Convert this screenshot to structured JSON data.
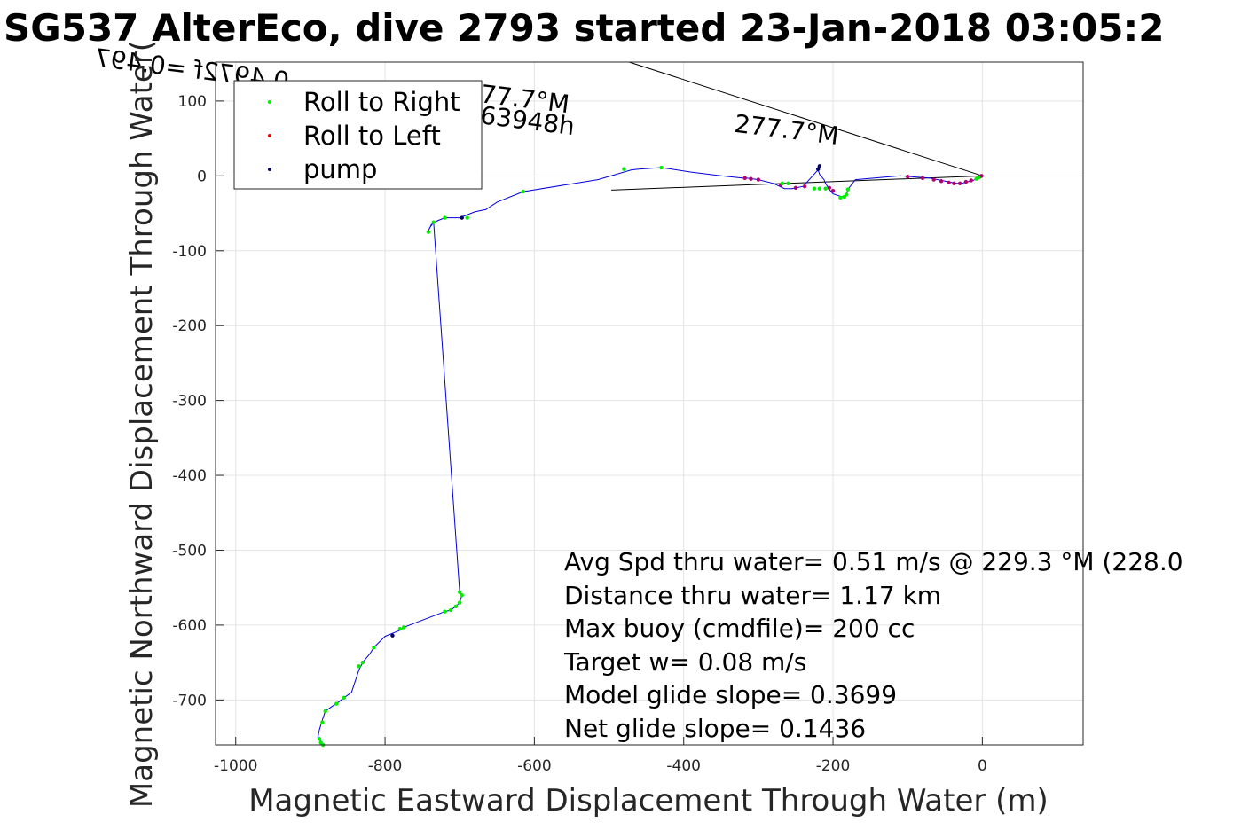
{
  "chart_data": {
    "type": "line",
    "title": "SG537 AlterEco, dive 2793 started 23-Jan-2018 03:05:2",
    "xlabel": "Magnetic Eastward Displacement Through Water (m)",
    "ylabel": "Magnetic Northward Displacement Through Water(",
    "xlim": [
      -1027,
      135
    ],
    "ylim": [
      -760,
      152
    ],
    "xticks": [
      -1000,
      -800,
      -600,
      -400,
      -200,
      0
    ],
    "yticks": [
      100,
      0,
      -100,
      -200,
      -300,
      -400,
      -500,
      -600,
      -700
    ],
    "grid": true,
    "legend_position": "top-left",
    "legend": [
      {
        "label": "Roll to Right",
        "color": "#00ee00"
      },
      {
        "label": "Roll to Left",
        "color": "#ee0000"
      },
      {
        "label": "pump",
        "color": "#000066"
      }
    ],
    "series": [
      {
        "color": "#0000dd",
        "x": [
          0,
          -5,
          -12,
          -20,
          -28,
          -35,
          -45,
          -70,
          -110,
          -170,
          -180,
          -182,
          -188,
          -200,
          -205,
          -210,
          -212,
          -218,
          -220,
          -240,
          -255,
          -265,
          -280,
          -300,
          -315,
          -320,
          -350,
          -390,
          -430,
          -460,
          -470,
          -515,
          -615,
          -650,
          -665,
          -680,
          -700,
          -720,
          -730,
          -738,
          -743,
          -740,
          -735,
          -700,
          -697,
          -700,
          -705,
          -712,
          -720,
          -775,
          -780,
          -790,
          -800,
          -815,
          -820,
          -830,
          -835,
          -845,
          -855,
          -865,
          -870,
          -880,
          -885,
          -888,
          -890,
          -886,
          -883
        ],
        "y": [
          0,
          -2,
          -6,
          -8,
          -10,
          -10,
          -8,
          -3,
          0,
          -5,
          -18,
          -25,
          -28,
          -24,
          -18,
          -10,
          -5,
          2,
          8,
          -14,
          -17,
          -17,
          -10,
          -5,
          -3,
          -3,
          0,
          5,
          11,
          9,
          8,
          -5,
          -21,
          -35,
          -45,
          -48,
          -56,
          -56,
          -60,
          -65,
          -76,
          -69,
          -62,
          -556,
          -560,
          -570,
          -575,
          -580,
          -582,
          -603,
          -607,
          -611,
          -615,
          -630,
          -638,
          -650,
          -660,
          -690,
          -697,
          -705,
          -708,
          -715,
          -730,
          -740,
          -750,
          -755,
          -760
        ]
      }
    ],
    "roll_right_points": [
      [
        -5,
        -2
      ],
      [
        -8,
        -4
      ],
      [
        -180,
        -18
      ],
      [
        -182,
        -25
      ],
      [
        -185,
        -28
      ],
      [
        -190,
        -29
      ],
      [
        -210,
        -17
      ],
      [
        -218,
        -17
      ],
      [
        -225,
        -17
      ],
      [
        -260,
        -10
      ],
      [
        -268,
        -10
      ],
      [
        -480,
        9
      ],
      [
        -430,
        11
      ],
      [
        -615,
        -21
      ],
      [
        -690,
        -56
      ],
      [
        -720,
        -56
      ],
      [
        -735,
        -62
      ],
      [
        -742,
        -75
      ],
      [
        -700,
        -556
      ],
      [
        -697,
        -560
      ],
      [
        -700,
        -570
      ],
      [
        -705,
        -575
      ],
      [
        -712,
        -580
      ],
      [
        -720,
        -582
      ],
      [
        -775,
        -603
      ],
      [
        -780,
        -605
      ],
      [
        -815,
        -630
      ],
      [
        -830,
        -650
      ],
      [
        -835,
        -655
      ],
      [
        -855,
        -697
      ],
      [
        -865,
        -705
      ],
      [
        -880,
        -715
      ],
      [
        -884,
        -730
      ],
      [
        -888,
        -752
      ],
      [
        -886,
        -757
      ],
      [
        -883,
        -760
      ]
    ],
    "roll_left_points": [
      [
        -1,
        0
      ],
      [
        -3,
        -1
      ],
      [
        -15,
        -6
      ],
      [
        -22,
        -8
      ],
      [
        -30,
        -10
      ],
      [
        -38,
        -10
      ],
      [
        -45,
        -9
      ],
      [
        -55,
        -7
      ],
      [
        -65,
        -5
      ],
      [
        -80,
        -3
      ],
      [
        -100,
        -1
      ],
      [
        -200,
        -20
      ],
      [
        -205,
        -16
      ],
      [
        -238,
        -14
      ],
      [
        -250,
        -16
      ],
      [
        -270,
        -12
      ],
      [
        -300,
        -5
      ],
      [
        -310,
        -4
      ],
      [
        -318,
        -3
      ]
    ],
    "pump_points": [
      [
        -220,
        9
      ],
      [
        -218,
        13
      ],
      [
        -697,
        -56
      ],
      [
        -790,
        -614
      ]
    ],
    "course_lines": [
      {
        "x": [
          0,
          -473
        ],
        "y": [
          0,
          152
        ],
        "label": "0.4972f =0.4972"
      },
      {
        "x": [
          0,
          -497
        ],
        "y": [
          0,
          -19
        ],
        "label": ""
      }
    ],
    "course_annotations": [
      "0.4972f =0.497",
      "277.7°M",
      "0.2162m/s for0.63948h",
      "277.7°M"
    ],
    "stats": [
      "Avg Spd thru water=  0.51 m/s @ 229.3 °M (228.0",
      "Distance thru water=  1.17 km",
      "Max buoy (cmdfile)= 200 cc",
      "Target w= 0.08 m/s",
      "Model glide slope= 0.3699",
      "Net glide slope= 0.1436"
    ]
  }
}
